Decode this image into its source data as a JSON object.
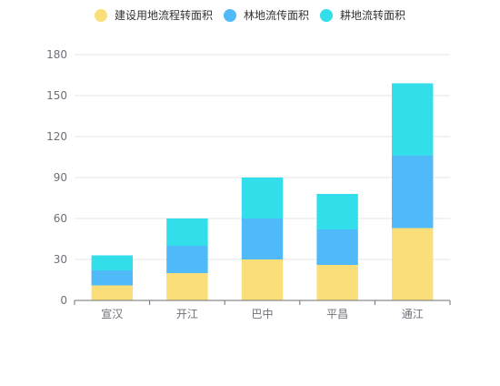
{
  "chart_data": {
    "type": "bar",
    "stacked": true,
    "categories": [
      "宣汉",
      "开江",
      "巴中",
      "平昌",
      "通江"
    ],
    "series": [
      {
        "name": "建设用地流程转面积",
        "color": "#F9DE79",
        "values": [
          11,
          20,
          30,
          26,
          53
        ]
      },
      {
        "name": "林地流传面积",
        "color": "#4FBAF7",
        "values": [
          11,
          20,
          30,
          26,
          53
        ]
      },
      {
        "name": "耕地流转面积",
        "color": "#31DEEA",
        "values": [
          11,
          20,
          30,
          26,
          53
        ]
      }
    ],
    "y_ticks": [
      "0",
      "30",
      "60",
      "90",
      "120",
      "150",
      "180"
    ],
    "ylim": [
      0,
      180
    ],
    "grid": true,
    "legend": "top-center"
  }
}
